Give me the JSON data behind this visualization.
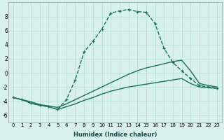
{
  "xlabel": "Humidex (Indice chaleur)",
  "bg_color": "#d8f0ee",
  "grid_color": "#b8ddd8",
  "line_color": "#1a7060",
  "xlim": [
    -0.5,
    23.5
  ],
  "ylim": [
    -7,
    10
  ],
  "xticks": [
    0,
    1,
    2,
    3,
    4,
    5,
    6,
    7,
    8,
    9,
    10,
    11,
    12,
    13,
    14,
    15,
    16,
    17,
    18,
    19,
    20,
    21,
    22,
    23
  ],
  "yticks": [
    -6,
    -4,
    -2,
    0,
    2,
    4,
    6,
    8
  ],
  "series": [
    {
      "x": [
        0,
        1,
        2,
        3,
        4,
        5,
        6,
        7,
        8,
        9,
        10,
        11,
        12,
        13,
        14,
        15,
        16,
        17,
        18,
        19,
        20,
        21,
        22,
        23
      ],
      "y": [
        -3.5,
        -3.8,
        -4.3,
        -4.6,
        -4.8,
        -5.2,
        -4.8,
        -4.4,
        -3.9,
        -3.5,
        -3.0,
        -2.6,
        -2.3,
        -2.0,
        -1.8,
        -1.6,
        -1.4,
        -1.2,
        -1.0,
        -0.8,
        -1.5,
        -2.0,
        -2.1,
        -2.2
      ],
      "marker": null,
      "linestyle": "-",
      "linewidth": 1.0
    },
    {
      "x": [
        0,
        1,
        2,
        3,
        4,
        5,
        6,
        7,
        8,
        9,
        10,
        11,
        12,
        13,
        14,
        15,
        16,
        17,
        18,
        19,
        20,
        21,
        22,
        23
      ],
      "y": [
        -3.5,
        -3.8,
        -4.1,
        -4.5,
        -4.7,
        -4.9,
        -4.4,
        -3.8,
        -3.2,
        -2.6,
        -2.0,
        -1.4,
        -0.8,
        -0.2,
        0.3,
        0.7,
        1.0,
        1.3,
        1.6,
        1.8,
        0.3,
        -1.5,
        -1.8,
        -2.0
      ],
      "marker": null,
      "linestyle": "-",
      "linewidth": 1.0
    },
    {
      "x": [
        0,
        1,
        2,
        3,
        4,
        5,
        6,
        7,
        8,
        9,
        10,
        11,
        12,
        13,
        14,
        15,
        16,
        17,
        18,
        19,
        20,
        21,
        22,
        23
      ],
      "y": [
        -3.5,
        -3.8,
        -4.3,
        -4.6,
        -4.8,
        -5.2,
        -3.8,
        -1.0,
        3.0,
        4.5,
        6.2,
        8.5,
        8.8,
        9.0,
        8.7,
        8.6,
        7.0,
        3.5,
        1.5,
        0.3,
        -0.8,
        -1.8,
        -2.0,
        -2.2
      ],
      "marker": "+",
      "linestyle": "--",
      "linewidth": 1.0
    }
  ]
}
